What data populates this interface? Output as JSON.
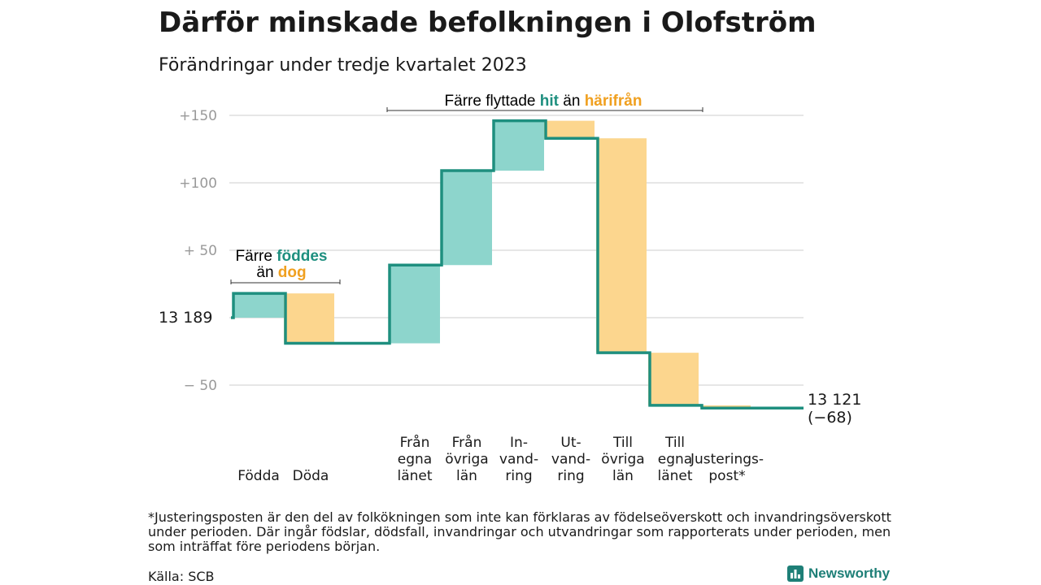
{
  "title": "Därför minskade befolkningen i Olofström",
  "subtitle": "Förändringar under tredje kvartalet 2023",
  "colors": {
    "increase": "#8dd5cc",
    "decrease": "#fcd68e",
    "line": "#1e8f7f",
    "grid": "#dddddd",
    "highlight_green": "#1e8f7f",
    "highlight_orange": "#f0a020"
  },
  "chart_data": {
    "type": "waterfall",
    "start_value": 13189,
    "start_label": "13  189",
    "end_value": 13121,
    "end_label_lines": [
      "13 121",
      "(−68)"
    ],
    "y_ticks": [
      {
        "value": 150,
        "label": "+150"
      },
      {
        "value": 100,
        "label": "+100"
      },
      {
        "value": 50,
        "label": "+  50"
      },
      {
        "value": 0,
        "label": ""
      },
      {
        "value": -50,
        "label": "−  50"
      }
    ],
    "ylim": [
      -65,
      160
    ],
    "steps": [
      {
        "label_lines": [
          "Födda"
        ],
        "change": 18
      },
      {
        "label_lines": [
          "Döda"
        ],
        "change": -37
      },
      {
        "label_lines": [
          ""
        ],
        "change": 0
      },
      {
        "label_lines": [
          "Från",
          "egna",
          "länet"
        ],
        "change": 58
      },
      {
        "label_lines": [
          "Från",
          "övriga",
          "län"
        ],
        "change": 70
      },
      {
        "label_lines": [
          "In-",
          "vand-",
          "ring"
        ],
        "change": 37
      },
      {
        "label_lines": [
          "Ut-",
          "vand-",
          "ring"
        ],
        "change": -13
      },
      {
        "label_lines": [
          "Till",
          "övriga",
          "län"
        ],
        "change": -159
      },
      {
        "label_lines": [
          "Till",
          "egna",
          "länet"
        ],
        "change": -39
      },
      {
        "label_lines": [
          "Justerings-",
          "post*"
        ],
        "change": -2
      }
    ]
  },
  "annotations": {
    "left": {
      "line1": "Färre ",
      "hl1": "föddes",
      "line2": "än ",
      "hl2": "dog"
    },
    "top": {
      "pre": "Färre flyttade ",
      "hl1": "hit",
      "mid": " än ",
      "hl2": "härifrån"
    }
  },
  "footnote": "*Justeringsposten är den del av folkökningen som inte kan förklaras av födelseöverskott och invandringsöverskott under perioden. Där ingår födslar, dödsfall, invandringar och utvandringar som rapporterats under perioden, men som inträffat före periodens början.",
  "source": "Källa: SCB",
  "brand": "Newsworthy"
}
